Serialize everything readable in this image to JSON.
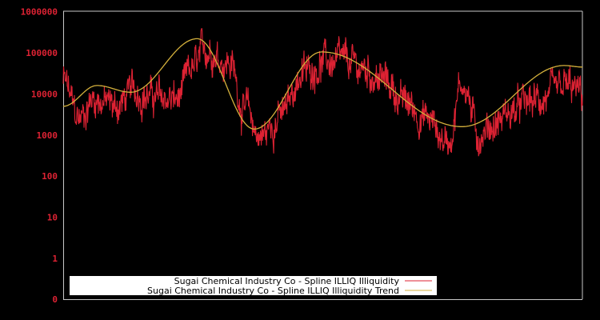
{
  "chart_data": {
    "type": "line",
    "title": "",
    "xlabel": "",
    "ylabel": "",
    "yscale": "log",
    "y_tick_labels": [
      "1000000",
      "100000",
      "10000",
      "1000",
      "100",
      "10",
      "1",
      "0"
    ],
    "x_tick_labels": [],
    "grid": false,
    "legend_position": "lower-left inside plot",
    "colors": {
      "background": "#000000",
      "axis": "#c8c8c8",
      "tick_label": "#dd2233",
      "series": "#dd2233",
      "trend": "#d4b03c",
      "legend_bg": "#ffffff"
    },
    "series": [
      {
        "name": "Sugai Chemical Industry Co - Spline ILLIQ Illiquidity",
        "style": "noisy line",
        "x_norm": [
          0.0,
          0.03,
          0.06,
          0.1,
          0.14,
          0.18,
          0.22,
          0.25,
          0.28,
          0.32,
          0.35,
          0.38,
          0.42,
          0.46,
          0.5,
          0.54,
          0.58,
          0.62,
          0.66,
          0.7,
          0.74,
          0.77,
          0.8,
          0.83,
          0.86,
          0.9,
          0.94,
          0.97,
          1.0
        ],
        "values": [
          20000,
          2500,
          8000,
          5000,
          12000,
          8000,
          7000,
          40000,
          130000,
          60000,
          4000,
          900,
          3000,
          30000,
          60000,
          55000,
          40000,
          20000,
          6000,
          2500,
          700,
          20000,
          1000,
          1800,
          3500,
          6000,
          8000,
          14000,
          9000
        ]
      },
      {
        "name": "Sugai Chemical Industry Co - Spline ILLIQ Illiquidity Trend",
        "style": "smooth line",
        "x_norm": [
          0.0,
          0.065,
          0.13,
          0.258,
          0.368,
          0.498,
          0.768,
          0.965,
          1.0
        ],
        "values": [
          5000,
          16000,
          11000,
          220000,
          1400,
          105000,
          1600,
          49000,
          45000
        ]
      }
    ],
    "legend": [
      "Sugai Chemical Industry Co - Spline ILLIQ Illiquidity",
      "Sugai Chemical Industry Co - Spline ILLIQ Illiquidity Trend"
    ]
  }
}
